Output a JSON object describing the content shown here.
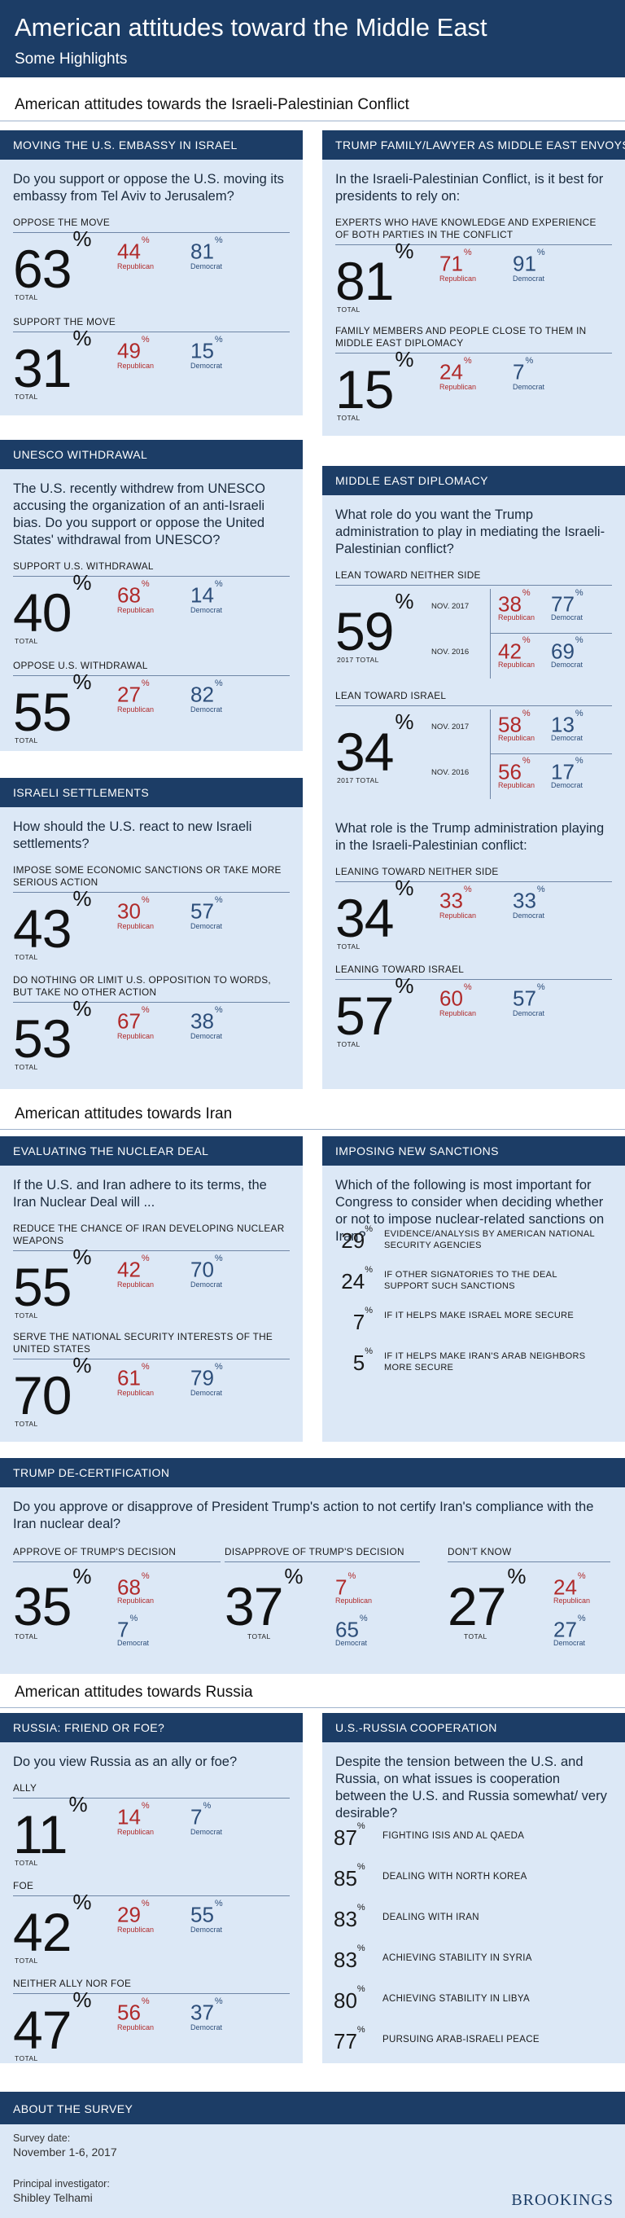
{
  "header": {
    "title": "American attitudes toward the Middle East",
    "subtitle": "Some Highlights"
  },
  "sections": {
    "israel": "American attitudes towards the Israeli-Palestinian Conflict",
    "iran": "American attitudes towards Iran",
    "russia": "American attitudes towards Russia"
  },
  "labels": {
    "total": "TOTAL",
    "republican": "Republican",
    "democrat": "Democrat",
    "pct": "%",
    "total2017": "2017 TOTAL"
  },
  "embassy": {
    "title": "MOVING THE U.S. EMBASSY IN ISRAEL",
    "question": "Do you support or oppose the U.S. moving its embassy from Tel Aviv to Jerusalem?",
    "rows": [
      {
        "label": "OPPOSE THE MOVE",
        "total": "63",
        "rep": "44",
        "dem": "81"
      },
      {
        "label": "SUPPORT THE MOVE",
        "total": "31",
        "rep": "49",
        "dem": "15"
      }
    ]
  },
  "envoys": {
    "title": "TRUMP FAMILY/LAWYER AS MIDDLE EAST ENVOYS",
    "question": "In the Israeli-Palestinian Conflict, is it best for presidents to rely on:",
    "rows": [
      {
        "label": "EXPERTS WHO HAVE KNOWLEDGE AND EXPERIENCE OF BOTH PARTIES IN THE CONFLICT",
        "total": "81",
        "rep": "71",
        "dem": "91"
      },
      {
        "label": "FAMILY MEMBERS AND PEOPLE CLOSE TO THEM IN MIDDLE EAST DIPLOMACY",
        "total": "15",
        "rep": "24",
        "dem": "7"
      }
    ]
  },
  "unesco": {
    "title": "UNESCO WITHDRAWAL",
    "question": "The U.S. recently withdrew from UNESCO accusing the organization of an anti-Israeli bias. Do you support or oppose the United States' withdrawal from UNESCO?",
    "rows": [
      {
        "label": "SUPPORT U.S. WITHDRAWAL",
        "total": "40",
        "rep": "68",
        "dem": "14"
      },
      {
        "label": "OPPOSE U.S. WITHDRAWAL",
        "total": "55",
        "rep": "27",
        "dem": "82"
      }
    ]
  },
  "diplomacy": {
    "title": "MIDDLE EAST DIPLOMACY",
    "question": "What role do you want the Trump administration to play in mediating the Israeli-Palestinian conflict?",
    "rows": [
      {
        "label": "LEAN TOWARD NEITHER SIDE",
        "total": "59",
        "nov2017": "NOV. 2017",
        "nov2016": "NOV. 2016",
        "rep17": "38",
        "dem17": "77",
        "rep16": "42",
        "dem16": "69"
      },
      {
        "label": "LEAN TOWARD ISRAEL",
        "total": "34",
        "nov2017": "NOV. 2017",
        "nov2016": "NOV. 2016",
        "rep17": "58",
        "dem17": "13",
        "rep16": "56",
        "dem16": "17"
      }
    ],
    "question2": "What role is the Trump administration playing in the Israeli-Palestinian conflict:",
    "rows2": [
      {
        "label": "LEANING TOWARD NEITHER SIDE",
        "total": "34",
        "rep": "33",
        "dem": "33"
      },
      {
        "label": "LEANING TOWARD ISRAEL",
        "total": "57",
        "rep": "60",
        "dem": "57"
      }
    ]
  },
  "settlements": {
    "title": "ISRAELI SETTLEMENTS",
    "question": "How should the U.S. react to new Israeli settlements?",
    "rows": [
      {
        "label": "IMPOSE SOME ECONOMIC SANCTIONS OR TAKE MORE SERIOUS ACTION",
        "total": "43",
        "rep": "30",
        "dem": "57"
      },
      {
        "label": "DO NOTHING OR LIMIT U.S. OPPOSITION TO WORDS, BUT TAKE NO OTHER ACTION",
        "total": "53",
        "rep": "67",
        "dem": "38"
      }
    ]
  },
  "nuclear": {
    "title": "EVALUATING THE NUCLEAR DEAL",
    "question": "If the U.S. and Iran adhere to its terms, the Iran Nuclear Deal will ...",
    "rows": [
      {
        "label": "REDUCE THE CHANCE OF IRAN DEVELOPING NUCLEAR WEAPONS",
        "total": "55",
        "rep": "42",
        "dem": "70"
      },
      {
        "label": "SERVE THE NATIONAL SECURITY INTERESTS OF THE UNITED STATES",
        "total": "70",
        "rep": "61",
        "dem": "79"
      }
    ]
  },
  "sanctions": {
    "title": "IMPOSING NEW SANCTIONS",
    "question": "Which of the following is most important for Congress to consider when deciding whether or not to impose nuclear-related sanctions on Iran?",
    "items": [
      {
        "value": "29",
        "text": "EVIDENCE/ANALYSIS BY AMERICAN NATIONAL SECURITY AGENCIES"
      },
      {
        "value": "24",
        "text": "IF OTHER SIGNATORIES TO THE DEAL SUPPORT SUCH SANCTIONS"
      },
      {
        "value": "7",
        "text": "IF IT HELPS MAKE ISRAEL MORE SECURE"
      },
      {
        "value": "5",
        "text": "IF IT HELPS MAKE IRAN'S ARAB NEIGHBORS MORE SECURE"
      }
    ]
  },
  "decert": {
    "title": "TRUMP DE-CERTIFICATION",
    "question": "Do you approve or disapprove of President Trump's action to not certify Iran's compliance with the Iran nuclear deal?",
    "cols": [
      {
        "label": "APPROVE OF TRUMP'S DECISION",
        "total": "35",
        "rep": "68",
        "dem": "7"
      },
      {
        "label": "DISAPPROVE OF TRUMP'S DECISION",
        "total": "37",
        "rep": "7",
        "dem": "65"
      },
      {
        "label": "DON'T KNOW",
        "total": "27",
        "rep": "24",
        "dem": "27"
      }
    ]
  },
  "russia": {
    "title": "RUSSIA: FRIEND OR FOE?",
    "question": "Do you view Russia as an ally or foe?",
    "rows": [
      {
        "label": "ALLY",
        "total": "11",
        "rep": "14",
        "dem": "7"
      },
      {
        "label": "FOE",
        "total": "42",
        "rep": "29",
        "dem": "55"
      },
      {
        "label": "NEITHER ALLY NOR FOE",
        "total": "47",
        "rep": "56",
        "dem": "37"
      }
    ]
  },
  "coop": {
    "title": "U.S.-RUSSIA COOPERATION",
    "question": "Despite the tension between the U.S. and Russia, on what issues is cooperation between the U.S. and Russia somewhat/ very desirable?",
    "items": [
      {
        "value": "87",
        "text": "FIGHTING ISIS AND AL QAEDA"
      },
      {
        "value": "85",
        "text": "DEALING WITH NORTH KOREA"
      },
      {
        "value": "83",
        "text": "DEALING WITH IRAN"
      },
      {
        "value": "83",
        "text": "ACHIEVING STABILITY IN SYRIA"
      },
      {
        "value": "80",
        "text": "ACHIEVING STABILITY IN LIBYA"
      },
      {
        "value": "77",
        "text": "PURSUING ARAB-ISRAELI PEACE"
      }
    ]
  },
  "survey": {
    "title": "ABOUT THE SURVEY",
    "date_label": "Survey date:",
    "date": "November 1-6, 2017",
    "pi_label": "Principal investigator:",
    "pi": "Shibley Telhami",
    "logo": "BROOKINGS"
  }
}
